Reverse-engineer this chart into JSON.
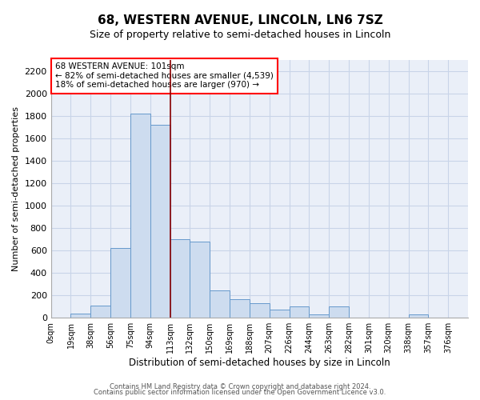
{
  "title": "68, WESTERN AVENUE, LINCOLN, LN6 7SZ",
  "subtitle": "Size of property relative to semi-detached houses in Lincoln",
  "xlabel": "Distribution of semi-detached houses by size in Lincoln",
  "ylabel": "Number of semi-detached properties",
  "bar_color": "#cddcef",
  "bar_edge_color": "#6699cc",
  "bin_labels": [
    "0sqm",
    "19sqm",
    "38sqm",
    "56sqm",
    "75sqm",
    "94sqm",
    "113sqm",
    "132sqm",
    "150sqm",
    "169sqm",
    "188sqm",
    "207sqm",
    "226sqm",
    "244sqm",
    "263sqm",
    "282sqm",
    "301sqm",
    "320sqm",
    "338sqm",
    "357sqm",
    "376sqm"
  ],
  "bar_values": [
    5,
    35,
    105,
    620,
    1820,
    1720,
    700,
    680,
    245,
    165,
    130,
    75,
    100,
    30,
    100,
    5,
    5,
    5,
    28,
    5,
    5
  ],
  "red_line_x": 6.0,
  "annotation_text": "68 WESTERN AVENUE: 101sqm\n← 82% of semi-detached houses are smaller (4,539)\n18% of semi-detached houses are larger (970) →",
  "ylim": [
    0,
    2300
  ],
  "yticks": [
    0,
    200,
    400,
    600,
    800,
    1000,
    1200,
    1400,
    1600,
    1800,
    2000,
    2200
  ],
  "grid_color": "#c8d4e8",
  "background_color": "#eaeff8",
  "footer_line1": "Contains HM Land Registry data © Crown copyright and database right 2024.",
  "footer_line2": "Contains public sector information licensed under the Open Government Licence v3.0."
}
